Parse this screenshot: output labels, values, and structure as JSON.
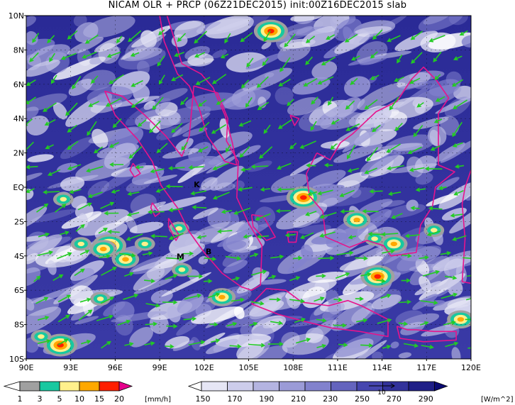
{
  "title": "NICAM OLR + PRCP (06Z21DEC2015) init:00Z16DEC2015 slab",
  "axes": {
    "lat_labels": [
      "10N",
      "8N",
      "6N",
      "4N",
      "2N",
      "EQ",
      "2S",
      "4S",
      "6S",
      "8S",
      "10S"
    ],
    "lon_labels": [
      "90E",
      "93E",
      "96E",
      "99E",
      "102E",
      "105E",
      "108E",
      "111E",
      "114E",
      "117E",
      "120E"
    ],
    "lat_range": [
      -10,
      10
    ],
    "lon_range": [
      90,
      120
    ]
  },
  "city_markers": [
    {
      "label": "K",
      "lon": 101.5,
      "lat": 0.0
    },
    {
      "label": "M",
      "lon": 100.4,
      "lat": -4.2
    },
    {
      "label": "B",
      "lon": 102.3,
      "lat": -3.9
    }
  ],
  "precip_legend": {
    "unit": "[mm/h]",
    "ticks": [
      "1",
      "3",
      "5",
      "10",
      "15",
      "20"
    ],
    "colors": [
      "#a0a0a0",
      "#18c8a0",
      "#fff08c",
      "#ffa800",
      "#ff1e00",
      "#e6008c"
    ]
  },
  "olr_legend": {
    "unit": "[W/m^2]",
    "ticks": [
      "150",
      "170",
      "190",
      "210",
      "230",
      "250",
      "270",
      "290"
    ],
    "colors": [
      "#ffffff",
      "#e6e6f5",
      "#cdcdeb",
      "#b4b4e1",
      "#9b9bd7",
      "#8282cd",
      "#6464be",
      "#4646af",
      "#32329b",
      "#1e1e87",
      "#0a0a73"
    ]
  },
  "wind_reference": {
    "label": "10"
  },
  "colors": {
    "coast": "#e6148c",
    "wind": "#22cc22",
    "grid": "#000000"
  }
}
